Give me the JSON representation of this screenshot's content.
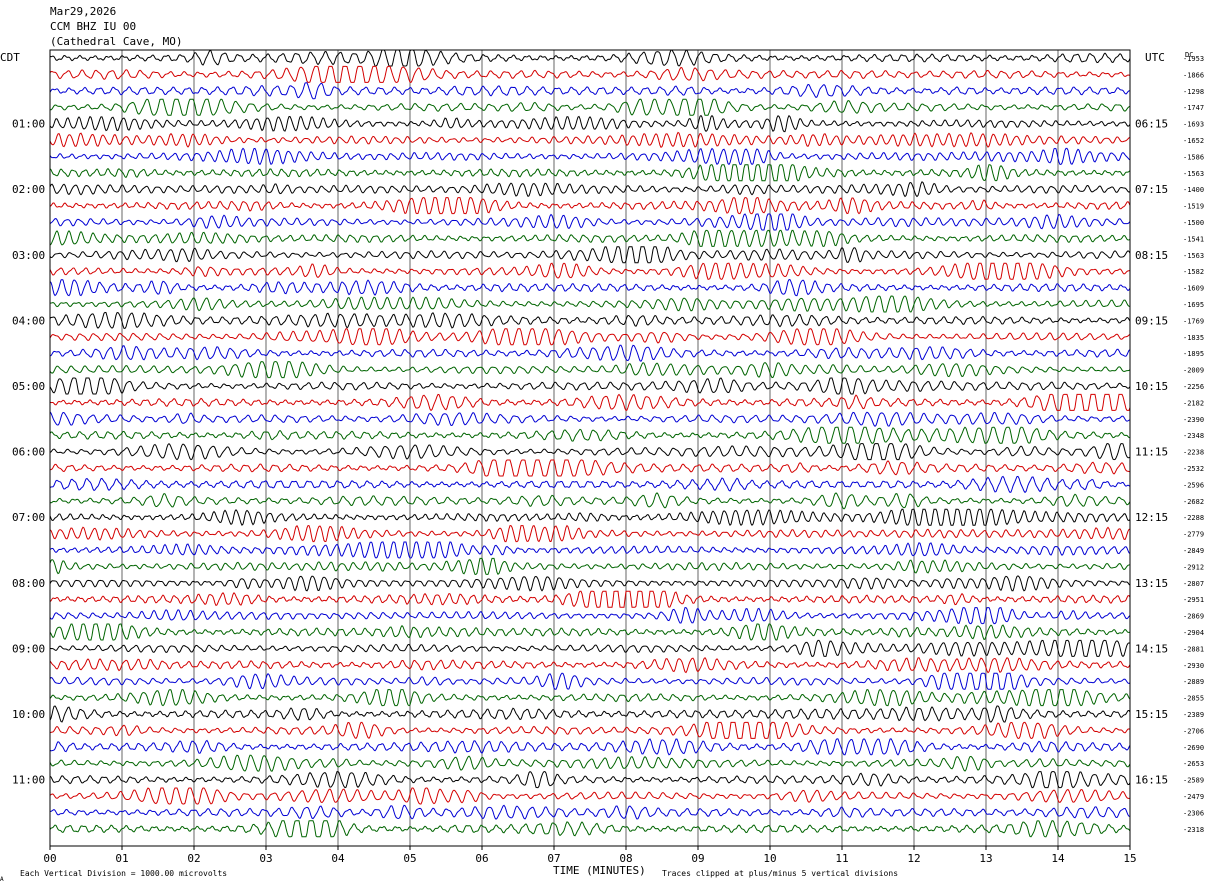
{
  "header": {
    "date": "Mar29,2026",
    "station": "CCM BHZ IU 00",
    "location": "(Cathedral Cave, MO)"
  },
  "left_tz": "CDT",
  "right_tz": "UTC",
  "dc_label": "DC",
  "footer": {
    "scale_note": "Each Vertical Division = 1000.00 microvolts",
    "xlabel": "TIME (MINUTES)",
    "clip_note": "Traces clipped at plus/minus 5 vertical divisions",
    "corner_mark": "A"
  },
  "colors": {
    "cycle": [
      "#000000",
      "#d40000",
      "#0000d4",
      "#006400"
    ],
    "grid": "#000000",
    "background": "#ffffff"
  },
  "chart_data": {
    "type": "line",
    "plot_kind": "helicorder",
    "xlim": [
      0,
      15
    ],
    "x_ticks": [
      "00",
      "01",
      "02",
      "03",
      "04",
      "05",
      "06",
      "07",
      "08",
      "09",
      "10",
      "11",
      "12",
      "13",
      "14",
      "15"
    ],
    "minutes_per_line": 15,
    "lines_per_hour": 4,
    "n_lines": 48,
    "grid": true,
    "left_hour_labels": [
      {
        "line": 4,
        "text": "01:00"
      },
      {
        "line": 8,
        "text": "02:00"
      },
      {
        "line": 12,
        "text": "03:00"
      },
      {
        "line": 16,
        "text": "04:00"
      },
      {
        "line": 20,
        "text": "05:00"
      },
      {
        "line": 24,
        "text": "06:00"
      },
      {
        "line": 28,
        "text": "07:00"
      },
      {
        "line": 32,
        "text": "08:00"
      },
      {
        "line": 36,
        "text": "09:00"
      },
      {
        "line": 40,
        "text": "10:00"
      },
      {
        "line": 44,
        "text": "11:00"
      }
    ],
    "right_hour_labels": [
      {
        "line": 4,
        "text": "06:15"
      },
      {
        "line": 8,
        "text": "07:15"
      },
      {
        "line": 12,
        "text": "08:15"
      },
      {
        "line": 16,
        "text": "09:15"
      },
      {
        "line": 20,
        "text": "10:15"
      },
      {
        "line": 24,
        "text": "11:15"
      },
      {
        "line": 28,
        "text": "12:15"
      },
      {
        "line": 32,
        "text": "13:15"
      },
      {
        "line": 36,
        "text": "14:15"
      },
      {
        "line": 40,
        "text": "15:15"
      },
      {
        "line": 44,
        "text": "16:15"
      }
    ],
    "dc_offsets": [
      "-1953",
      "-1866",
      "-1298",
      "-1747",
      "-1693",
      "-1652",
      "-1586",
      "-1563",
      "-1400",
      "-1519",
      "-1500",
      "-1541",
      "-1563",
      "-1582",
      "-1609",
      "-1695",
      "-1769",
      "-1835",
      "-1895",
      "-2009",
      "-2256",
      "-2182",
      "-2390",
      "-2348",
      "-2238",
      "-2532",
      "-2596",
      "-2682",
      "-2288",
      "-2779",
      "-2849",
      "-2912",
      "-2807",
      "-2951",
      "-2869",
      "-2904",
      "-2881",
      "-2930",
      "-2889",
      "-2855",
      "-2389",
      "-2706",
      "-2690",
      "-2653",
      "-2589",
      "-2479",
      "-2306",
      "-2318"
    ]
  }
}
